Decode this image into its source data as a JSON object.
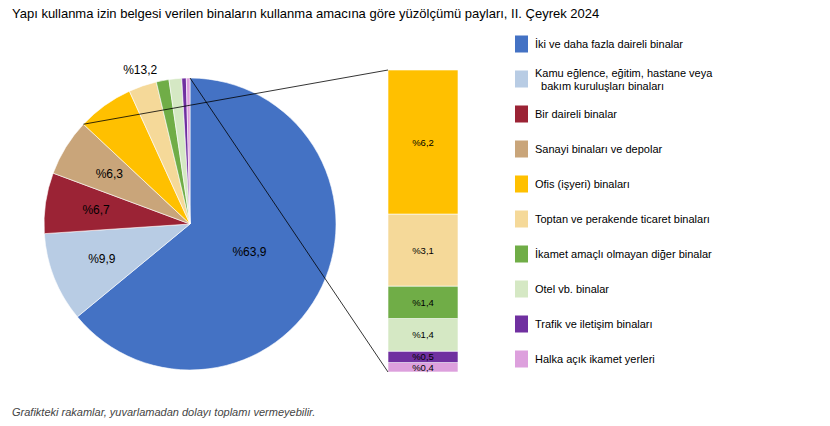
{
  "chart_data": [
    {
      "type": "pie",
      "title": "Yapı kullanma izin belgesi verilen binaların kullanma amacına göre yüzölçümü payları, II. Çeyrek 2024",
      "categories": [
        "İki ve daha fazla daireli binalar",
        "Kamu eğlence, eğitim, hastane veya\n  bakım kuruluşları binaları",
        "Bir daireli binalar",
        "Sanayi binaları ve depolar",
        "Ofis (işyeri) binaları",
        "Toptan ve perakende ticaret binaları",
        "İkamet amaçlı olmayan diğer binalar",
        "Otel vb. binalar",
        "Trafik ve iletişim binaları",
        "Halka açık ikamet yerleri"
      ],
      "values": [
        63.9,
        9.9,
        6.7,
        6.3,
        6.2,
        3.1,
        1.4,
        1.4,
        0.5,
        0.4
      ],
      "colors": [
        "#4472C4",
        "#B8CCE4",
        "#9B2335",
        "#C9A57A",
        "#FFC000",
        "#F5D999",
        "#70AD47",
        "#D5E8C4",
        "#7030A0",
        "#DDA0DD"
      ],
      "value_labels": [
        "%63,9",
        "%9,9",
        "%6,7",
        "%6,3",
        null,
        null,
        null,
        null,
        null,
        null
      ],
      "data_labels": true,
      "annotations": [
        "%13,2"
      ],
      "footnote": "Grafikteki rakamlar, yuvarlamadan dolayı toplamı vermeyebilir.",
      "legend": "right"
    },
    {
      "type": "bar",
      "stacked": true,
      "values": [
        6.2,
        3.1,
        1.4,
        1.4,
        0.5,
        0.4
      ],
      "colors": [
        "#FFC000",
        "#F5D999",
        "#70AD47",
        "#D5E8C4",
        "#7030A0",
        "#DDA0DD"
      ],
      "value_labels": [
        "%6,2",
        "%3,1",
        "%1,4",
        "%1,4",
        "%0,5",
        "%0,4"
      ],
      "data_labels": true,
      "ylim": [
        0,
        13
      ],
      "tick_labels": false
    }
  ]
}
